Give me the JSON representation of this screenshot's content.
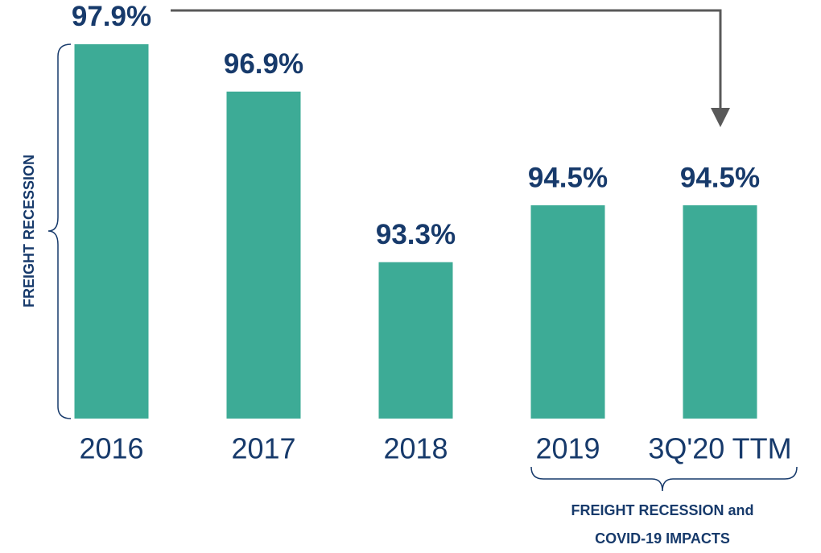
{
  "chart_data": {
    "type": "bar",
    "categories": [
      "2016",
      "2017",
      "2018",
      "2019",
      "3Q'20 TTM"
    ],
    "values": [
      97.9,
      96.9,
      93.3,
      94.5,
      94.5
    ],
    "value_labels": [
      "97.9%",
      "96.9%",
      "93.3%",
      "94.5%",
      "94.5%"
    ],
    "color": "#3dab96",
    "ylim": [
      90,
      98
    ],
    "annotations": [
      "FREIGHT RECESSION",
      "FREIGHT RECESSION and",
      "COVID-19 IMPACTS"
    ]
  }
}
